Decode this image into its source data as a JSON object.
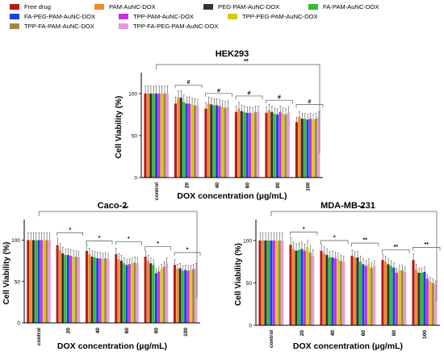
{
  "legend": [
    {
      "name": "Free drug",
      "color": "#b31b1b"
    },
    {
      "name": "PAM-AuNC-DOX",
      "color": "#f28c28"
    },
    {
      "name": "PEG-PAM-AuNC-DOX",
      "color": "#333333"
    },
    {
      "name": "FA-PAM-AuNC-DOX",
      "color": "#2fbf2f"
    },
    {
      "name": "FA-PEG-PAM-AuNC-DOX",
      "color": "#1f3fe0"
    },
    {
      "name": "TPP-PAM-AuNC-DOX",
      "color": "#c42fe8"
    },
    {
      "name": "TPP-PEG-PAM-AuNC-DOX",
      "color": "#d8c810"
    },
    {
      "name": "TPP-FA-PAM-AuNC-DOX",
      "color": "#a8844a"
    },
    {
      "name": "TPP-FA-PEG-PAM-AuNC-DOX",
      "color": "#e49ad8"
    }
  ],
  "chart_data": [
    {
      "type": "bar",
      "title": "HEK293",
      "xlabel": "DOX concentration (µg/mL)",
      "ylabel": "Cell Viability (%)",
      "categories": [
        "control",
        "20",
        "40",
        "60",
        "80",
        "100"
      ],
      "yticks": [
        "0",
        "50",
        "100"
      ],
      "ylim": [
        0,
        120
      ],
      "series_values": [
        [
          100,
          88,
          82,
          78,
          77,
          66
        ],
        [
          100,
          95,
          88,
          82,
          80,
          72
        ],
        [
          100,
          95,
          87,
          79,
          78,
          70
        ],
        [
          100,
          90,
          86,
          78,
          76,
          70
        ],
        [
          100,
          88,
          86,
          77,
          75,
          69
        ],
        [
          100,
          88,
          85,
          77,
          78,
          70
        ],
        [
          100,
          87,
          84,
          76,
          76,
          69
        ],
        [
          100,
          86,
          83,
          78,
          75,
          70
        ],
        [
          100,
          85,
          84,
          78,
          77,
          72
        ]
      ],
      "annotations": [
        {
          "type": "bracket",
          "label": "#",
          "from": "20"
        },
        {
          "type": "bracket",
          "label": "#",
          "from": "40"
        },
        {
          "type": "bracket",
          "label": "#",
          "from": "60"
        },
        {
          "type": "bracket",
          "label": "#",
          "from": "80"
        },
        {
          "type": "bracket",
          "label": "#",
          "from": "100"
        },
        {
          "type": "overall",
          "label": "**"
        }
      ]
    },
    {
      "type": "bar",
      "title": "Caco-2",
      "xlabel": "DOX concentration (µg/mL)",
      "ylabel": "Cell Viability (%)",
      "categories": [
        "control",
        "20",
        "40",
        "60",
        "80",
        "100"
      ],
      "yticks": [
        "0",
        "50",
        "100"
      ],
      "ylim": [
        0,
        120
      ],
      "series_values": [
        [
          100,
          94,
          87,
          83,
          80,
          70
        ],
        [
          100,
          88,
          83,
          77,
          75,
          65
        ],
        [
          100,
          84,
          80,
          75,
          72,
          66
        ],
        [
          100,
          82,
          79,
          72,
          70,
          63
        ],
        [
          100,
          82,
          78,
          70,
          60,
          64
        ],
        [
          100,
          81,
          78,
          71,
          62,
          63
        ],
        [
          100,
          80,
          77,
          72,
          65,
          64
        ],
        [
          100,
          80,
          78,
          73,
          68,
          65
        ],
        [
          100,
          79,
          77,
          72,
          72,
          66
        ]
      ],
      "annotations": [
        {
          "type": "bracket",
          "label": "*",
          "from": "20"
        },
        {
          "type": "bracket",
          "label": "*",
          "from": "40"
        },
        {
          "type": "bracket",
          "label": "*",
          "from": "60"
        },
        {
          "type": "bracket",
          "label": "*",
          "from": "80"
        },
        {
          "type": "bracket",
          "label": "*",
          "from": "100"
        },
        {
          "type": "overall",
          "label": "**"
        }
      ]
    },
    {
      "type": "bar",
      "title": "MDA-MB-231",
      "xlabel": "DOX concentration (µg/mL)",
      "ylabel": "Cell Viability (%)",
      "categories": [
        "control",
        "20",
        "40",
        "60",
        "80",
        "100"
      ],
      "yticks": [
        "0",
        "50",
        "100"
      ],
      "ylim": [
        0,
        120
      ],
      "series_values": [
        [
          100,
          95,
          88,
          82,
          77,
          77
        ],
        [
          100,
          90,
          85,
          80,
          75,
          66
        ],
        [
          100,
          88,
          83,
          80,
          72,
          62
        ],
        [
          100,
          89,
          80,
          75,
          70,
          62
        ],
        [
          100,
          90,
          80,
          72,
          68,
          63
        ],
        [
          100,
          88,
          79,
          70,
          62,
          55
        ],
        [
          100,
          92,
          78,
          72,
          65,
          52
        ],
        [
          100,
          86,
          76,
          68,
          65,
          50
        ],
        [
          100,
          82,
          75,
          70,
          63,
          48
        ]
      ],
      "annotations": [
        {
          "type": "bracket",
          "label": "*",
          "from": "20"
        },
        {
          "type": "bracket",
          "label": "*",
          "from": "40"
        },
        {
          "type": "bracket",
          "label": "**",
          "from": "60"
        },
        {
          "type": "bracket",
          "label": "**",
          "from": "80"
        },
        {
          "type": "bracket",
          "label": "**",
          "from": "100"
        },
        {
          "type": "overall",
          "label": "**"
        }
      ]
    }
  ]
}
